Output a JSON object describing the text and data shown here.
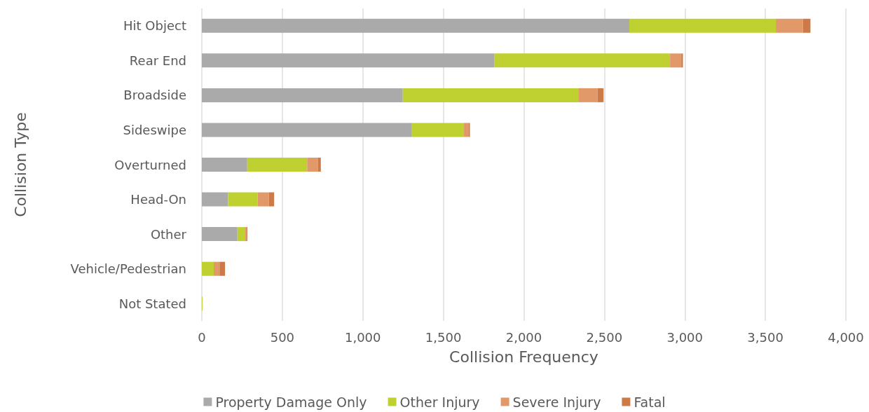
{
  "chart_data": {
    "type": "bar",
    "orientation": "horizontal",
    "stacked": true,
    "xlabel": "Collision Frequency",
    "ylabel": "Collision Type",
    "categories": [
      "Hit Object",
      "Rear End",
      "Broadside",
      "Sideswipe",
      "Overturned",
      "Head-On",
      "Other",
      "Vehicle/Pedestrian",
      "Not Stated"
    ],
    "series": [
      {
        "name": "Property Damage Only",
        "color": "#a9aaa9",
        "values": [
          2655,
          1818,
          1248,
          1305,
          282,
          163,
          221,
          0,
          0
        ]
      },
      {
        "name": "Other Injury",
        "color": "#bfd130",
        "values": [
          910,
          1090,
          1090,
          323,
          372,
          184,
          49,
          74,
          4
        ]
      },
      {
        "name": "Severe Injury",
        "color": "#e2996a",
        "values": [
          168,
          70,
          120,
          30,
          68,
          69,
          9,
          36,
          0
        ]
      },
      {
        "name": "Fatal",
        "color": "#cc7a48",
        "values": [
          47,
          10,
          37,
          7,
          17,
          33,
          4,
          34,
          0
        ]
      }
    ],
    "xlim": [
      0,
      4000
    ],
    "xticks": [
      0,
      500,
      {
        "value": 1000,
        "label": "1,000"
      },
      {
        "value": 1500,
        "label": "1,500"
      },
      {
        "value": 2000,
        "label": "2,000"
      },
      {
        "value": 2500,
        "label": "2,500"
      },
      {
        "value": 3000,
        "label": "3,000"
      },
      {
        "value": 3500,
        "label": "3,500"
      },
      {
        "value": 4000,
        "label": "4,000"
      }
    ],
    "grid": "x",
    "legend": "bottom"
  }
}
